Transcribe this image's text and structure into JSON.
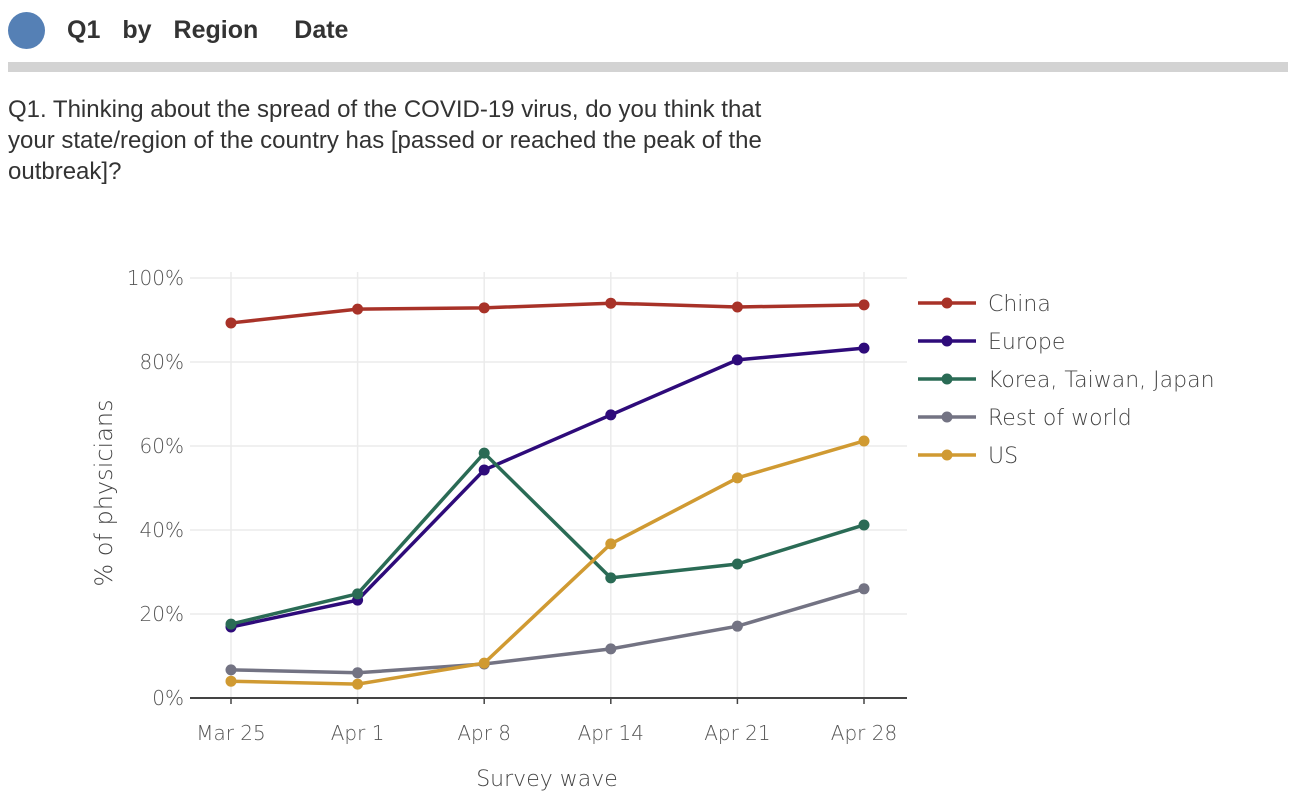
{
  "header": {
    "tokens": [
      "Q1",
      "by",
      "Region",
      "Date"
    ],
    "icon_color": "#5580b5"
  },
  "question": "Q1. Thinking about the spread of the COVID-19 virus, do you think that your state/region of the country has [passed or reached the peak of the outbreak]?",
  "chart_data": {
    "type": "line",
    "categories": [
      "Mar 25",
      "Apr 1",
      "Apr 8",
      "Apr 14",
      "Apr 21",
      "Apr 28"
    ],
    "xlabel": "Survey wave",
    "ylabel": "% of physicians",
    "ylim": [
      0,
      100
    ],
    "yticks": [
      "0%",
      "20%",
      "40%",
      "60%",
      "80%",
      "100%"
    ],
    "grid": true,
    "legend": "right",
    "series": [
      {
        "name": "China",
        "color": "#a83228",
        "values": [
          89.3,
          92.6,
          92.9,
          94.0,
          93.1,
          93.6
        ]
      },
      {
        "name": "Europe",
        "color": "#2e0b7a",
        "values": [
          16.9,
          23.3,
          54.3,
          67.4,
          80.5,
          83.3
        ]
      },
      {
        "name": "Korea, Taiwan, Japan",
        "color": "#2a6b55",
        "values": [
          17.6,
          24.8,
          58.3,
          28.6,
          31.9,
          41.2
        ]
      },
      {
        "name": "Rest of world",
        "color": "#737383",
        "values": [
          6.7,
          6.0,
          8.1,
          11.7,
          17.1,
          26.0
        ]
      },
      {
        "name": "US",
        "color": "#d09a32",
        "values": [
          4.0,
          3.3,
          8.3,
          36.7,
          52.4,
          61.2
        ]
      }
    ]
  }
}
